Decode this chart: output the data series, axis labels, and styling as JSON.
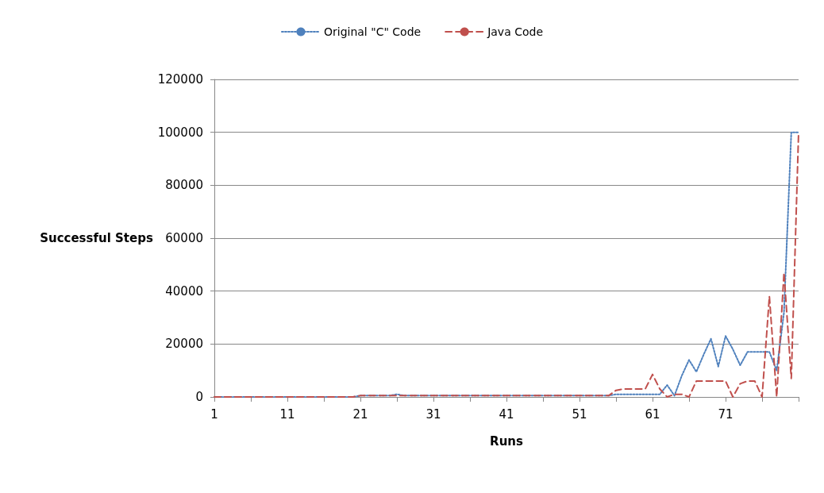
{
  "chart_data": {
    "type": "line",
    "xlabel": "Runs",
    "ylabel": "Successful Steps",
    "categories": [
      "1",
      null,
      null,
      null,
      null,
      null,
      null,
      null,
      null,
      null,
      "11",
      null,
      null,
      null,
      null,
      null,
      null,
      null,
      null,
      null,
      "21",
      null,
      null,
      null,
      null,
      null,
      null,
      null,
      null,
      null,
      "31",
      null,
      null,
      null,
      null,
      null,
      null,
      null,
      null,
      null,
      "41",
      null,
      null,
      null,
      null,
      null,
      null,
      null,
      null,
      null,
      "51",
      null,
      null,
      null,
      null,
      null,
      null,
      null,
      null,
      null,
      "61",
      null,
      null,
      null,
      null,
      null,
      null,
      null,
      null,
      null,
      "71",
      null,
      null,
      null,
      null,
      null,
      null,
      null,
      null,
      null,
      null
    ],
    "series": [
      {
        "name": "Original \"C\" Code",
        "color": "#4f81bd",
        "line_style": "dotted",
        "values": [
          0,
          0,
          0,
          0,
          0,
          0,
          0,
          0,
          0,
          0,
          0,
          0,
          0,
          0,
          0,
          0,
          0,
          0,
          0,
          0,
          500,
          500,
          500,
          500,
          500,
          1000,
          500,
          500,
          500,
          500,
          500,
          500,
          500,
          500,
          500,
          500,
          500,
          500,
          500,
          500,
          500,
          500,
          500,
          500,
          500,
          500,
          500,
          500,
          500,
          500,
          500,
          500,
          500,
          500,
          500,
          1000,
          1000,
          1000,
          1000,
          1000,
          1000,
          1000,
          4500,
          500,
          8000,
          14000,
          9500,
          16000,
          22000,
          11500,
          23000,
          18000,
          12000,
          17000,
          17000,
          17000,
          17000,
          10000,
          32000,
          100000,
          100000
        ]
      },
      {
        "name": "Java Code",
        "color": "#c0504d",
        "line_style": "dashed",
        "values": [
          0,
          0,
          0,
          0,
          0,
          0,
          0,
          0,
          0,
          0,
          0,
          0,
          0,
          0,
          0,
          0,
          0,
          0,
          0,
          0,
          500,
          500,
          500,
          500,
          500,
          500,
          500,
          500,
          500,
          500,
          500,
          500,
          500,
          500,
          500,
          500,
          500,
          500,
          500,
          500,
          500,
          500,
          500,
          500,
          500,
          500,
          500,
          500,
          500,
          500,
          500,
          500,
          500,
          500,
          500,
          2500,
          3000,
          3000,
          3000,
          3000,
          8500,
          3000,
          0,
          1000,
          1000,
          0,
          6000,
          6000,
          6000,
          6000,
          6000,
          0,
          5000,
          6000,
          6000,
          0,
          38000,
          0,
          47000,
          7000,
          100000
        ]
      }
    ],
    "ylim": [
      0,
      120000
    ],
    "yticks": [
      0,
      20000,
      40000,
      60000,
      80000,
      100000,
      120000
    ],
    "grid": "y",
    "legend": "top",
    "marker": "none"
  }
}
